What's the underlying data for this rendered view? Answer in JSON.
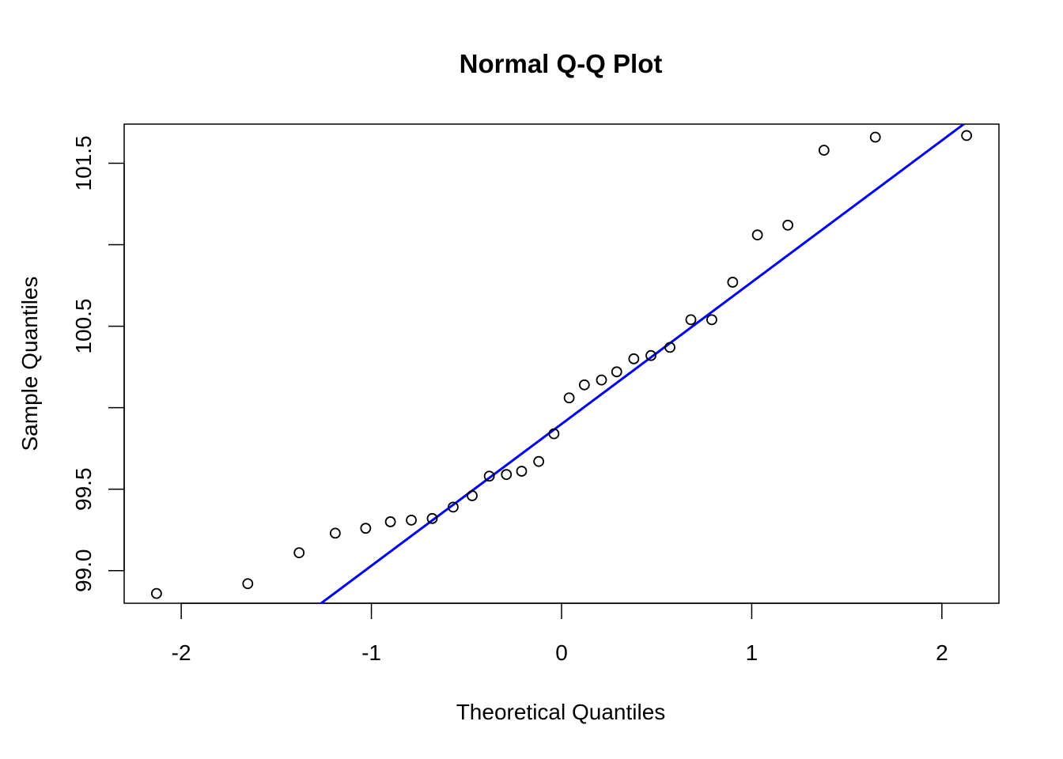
{
  "chart_data": {
    "type": "scatter",
    "title": "Normal Q-Q Plot",
    "xlabel": "Theoretical Quantiles",
    "ylabel": "Sample Quantiles",
    "xlim": [
      -2.3,
      2.3
    ],
    "ylim": [
      98.8,
      101.74
    ],
    "x_ticks": [
      {
        "value": -2,
        "label": "-2"
      },
      {
        "value": -1,
        "label": "-1"
      },
      {
        "value": 0,
        "label": "0"
      },
      {
        "value": 1,
        "label": "1"
      },
      {
        "value": 2,
        "label": "2"
      }
    ],
    "y_ticks": [
      {
        "value": 99.0,
        "label": "99.0"
      },
      {
        "value": 99.5,
        "label": "99.5"
      },
      {
        "value": 100.0,
        "label": ""
      },
      {
        "value": 100.5,
        "label": "100.5"
      },
      {
        "value": 101.0,
        "label": ""
      },
      {
        "value": 101.5,
        "label": "101.5"
      }
    ],
    "points": [
      {
        "x": -2.13,
        "y": 98.86
      },
      {
        "x": -1.65,
        "y": 98.92
      },
      {
        "x": -1.38,
        "y": 99.11
      },
      {
        "x": -1.19,
        "y": 99.23
      },
      {
        "x": -1.03,
        "y": 99.26
      },
      {
        "x": -0.9,
        "y": 99.3
      },
      {
        "x": -0.79,
        "y": 99.31
      },
      {
        "x": -0.68,
        "y": 99.32
      },
      {
        "x": -0.57,
        "y": 99.39
      },
      {
        "x": -0.47,
        "y": 99.46
      },
      {
        "x": -0.38,
        "y": 99.58
      },
      {
        "x": -0.29,
        "y": 99.59
      },
      {
        "x": -0.21,
        "y": 99.61
      },
      {
        "x": -0.12,
        "y": 99.67
      },
      {
        "x": -0.04,
        "y": 99.84
      },
      {
        "x": 0.04,
        "y": 100.06
      },
      {
        "x": 0.12,
        "y": 100.14
      },
      {
        "x": 0.21,
        "y": 100.17
      },
      {
        "x": 0.29,
        "y": 100.22
      },
      {
        "x": 0.38,
        "y": 100.3
      },
      {
        "x": 0.47,
        "y": 100.32
      },
      {
        "x": 0.57,
        "y": 100.37
      },
      {
        "x": 0.68,
        "y": 100.54
      },
      {
        "x": 0.79,
        "y": 100.54
      },
      {
        "x": 0.9,
        "y": 100.77
      },
      {
        "x": 1.03,
        "y": 101.06
      },
      {
        "x": 1.19,
        "y": 101.12
      },
      {
        "x": 1.38,
        "y": 101.58
      },
      {
        "x": 1.65,
        "y": 101.66
      },
      {
        "x": 2.13,
        "y": 101.67
      }
    ],
    "reference_line": {
      "intercept": 99.9,
      "slope": 0.87,
      "color": "#0000ff"
    },
    "point_color": "#000000",
    "grid": false,
    "legend": "none"
  }
}
